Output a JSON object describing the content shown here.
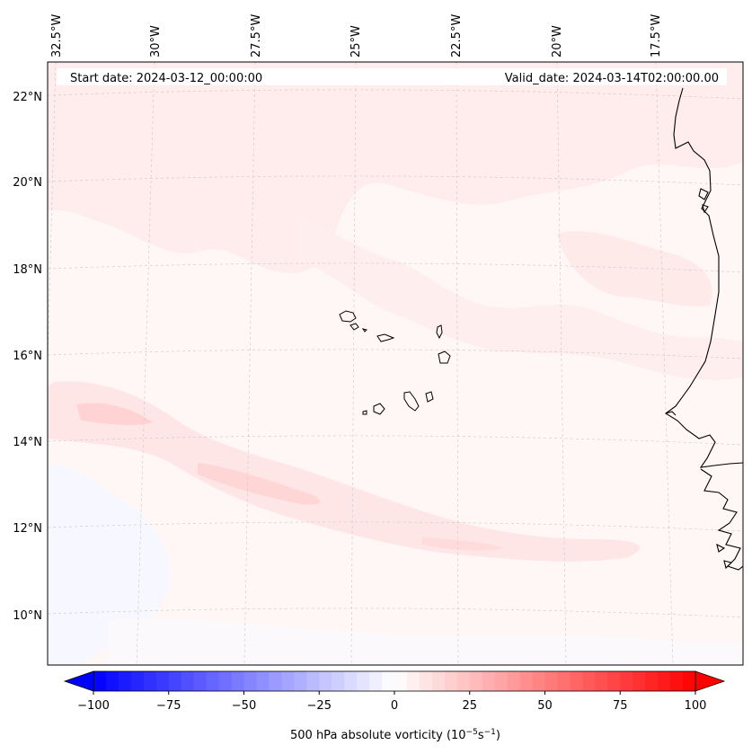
{
  "header": {
    "start_date": "Start date: 2024-03-12_00:00:00",
    "valid_date": "Valid_date: 2024-03-14T02:00:00.00"
  },
  "map": {
    "lon_labels": [
      "32.5°W",
      "30°W",
      "27.5°W",
      "25°W",
      "22.5°W",
      "20°W",
      "17.5°W"
    ],
    "lat_labels": [
      "22°N",
      "20°N",
      "18°N",
      "16°N",
      "14°N",
      "12°N",
      "10°N"
    ],
    "features": [
      "Cape Verde islands",
      "West African coastline"
    ]
  },
  "colorbar": {
    "label": "500 hPa absolute vorticity (10",
    "label_exp1": "−5",
    "label_mid": "s",
    "label_exp2": "−1",
    "label_end": ")",
    "ticks": [
      "−100",
      "−75",
      "−50",
      "−25",
      "0",
      "25",
      "50",
      "75",
      "100"
    ],
    "range": [
      -100,
      100
    ],
    "levels": 48,
    "negative_color": "#0000ff",
    "zero_color": "#ffffff",
    "positive_color": "#ff0000"
  },
  "colors": {
    "background_field": "#fff6f6",
    "weak_positive": "#ffe6e6",
    "moderate_positive": "#ffd8d8",
    "weak_negative": "#f4f6ff",
    "coastline": "#000000",
    "gridline": "#bbbbbb"
  }
}
